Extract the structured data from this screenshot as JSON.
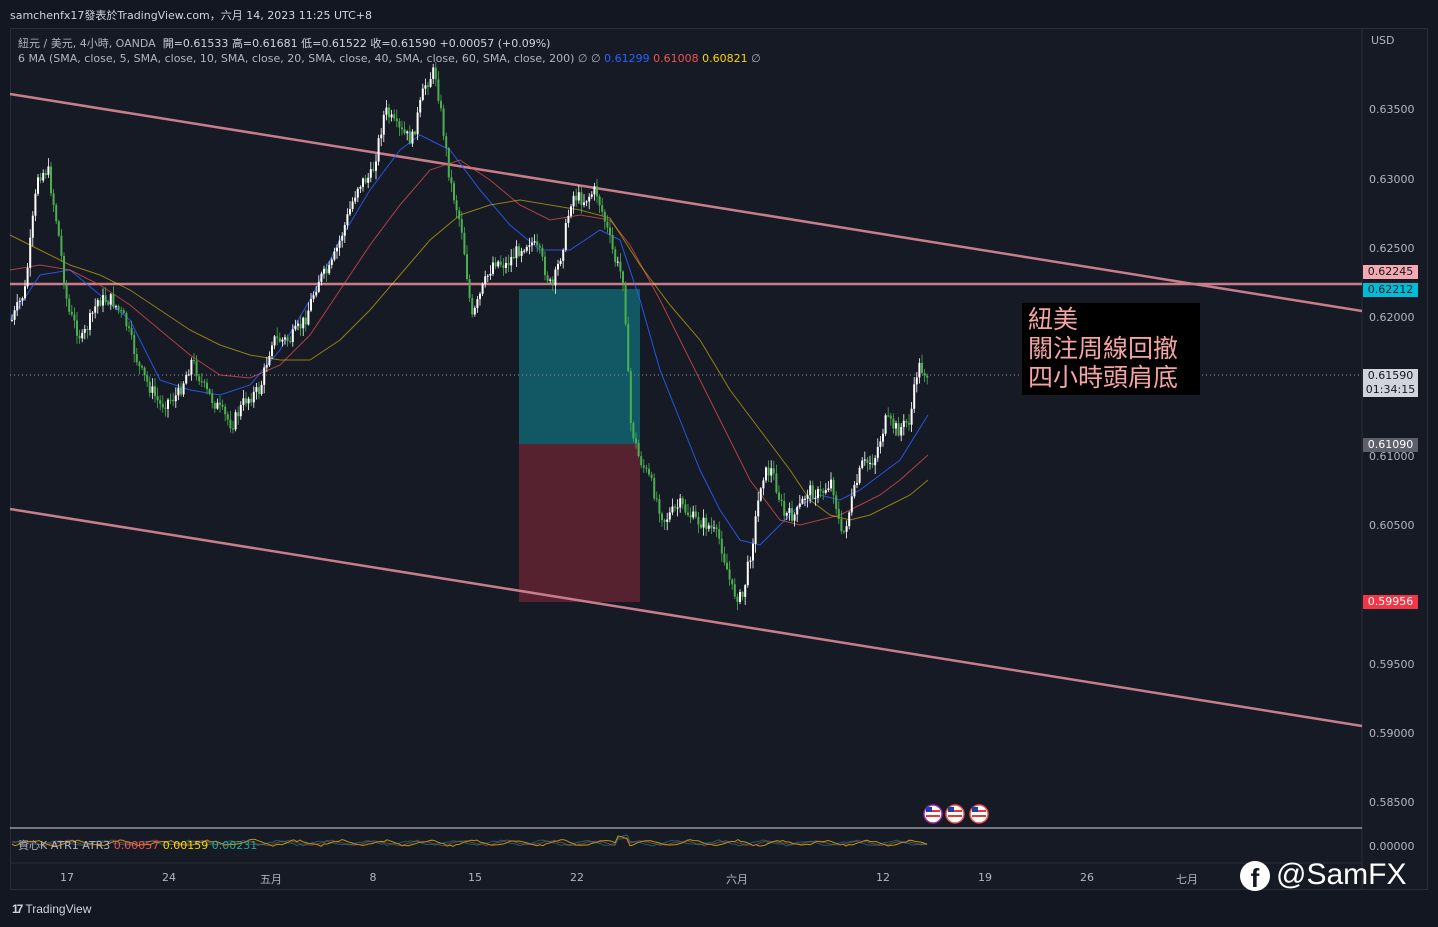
{
  "header": {
    "title": "samchenfx17發表於TradingView.com，六月 14, 2023 11:25 UTC+8"
  },
  "legend": {
    "symbol": "紐元 / 美元, 4小時, OANDA",
    "ohlc": "開=0.61533  高=0.61681  低=0.61522  收=0.61590  +0.00057 (+0.09%)",
    "ma_label": "6 MA  (SMA, close, 5, SMA, close, 10, SMA, close, 20, SMA, close, 40, SMA, close, 60, SMA, close, 200)  ∅  ∅",
    "ma_values": [
      "0.61299",
      "0.61008",
      "0.60821"
    ],
    "ma_tail": "∅"
  },
  "atr_legend": {
    "label": "資心K  ATR1  ATR3",
    "values": [
      "0.00057",
      "0.00159",
      "0.00231"
    ]
  },
  "price_axis": {
    "currency": "USD",
    "ticks": [
      "0.63500",
      "0.63000",
      "0.62500",
      "0.62000",
      "0.61590",
      "0.61000",
      "0.60500",
      "0.59500",
      "0.59000",
      "0.58500",
      "0.00000"
    ]
  },
  "price_tags": {
    "resistance": "0.62245",
    "target": "0.62212",
    "last": "0.61590",
    "countdown": "01:34:15",
    "entry": "0.61090",
    "stop": "0.59956"
  },
  "time_axis": {
    "ticks": [
      "17",
      "24",
      "五月",
      "8",
      "15",
      "22",
      "六月",
      "12",
      "19",
      "26",
      "七月"
    ]
  },
  "annotation": {
    "lines": [
      "紐美",
      "關注周線回撤",
      "四小時頭肩底"
    ]
  },
  "footer": {
    "brand": "TradingView",
    "social": "@SamFX"
  },
  "colors": {
    "background": "#161a25",
    "channel": "#c77e8a",
    "candle_up": "#ffffff",
    "candle_down": "#4caf50",
    "target_zone": "#115e6b",
    "stop_zone": "#5d2432",
    "tag_red": "#f23645",
    "tag_cyan": "#00bcd4",
    "tag_pink": "#f4aab0"
  }
}
